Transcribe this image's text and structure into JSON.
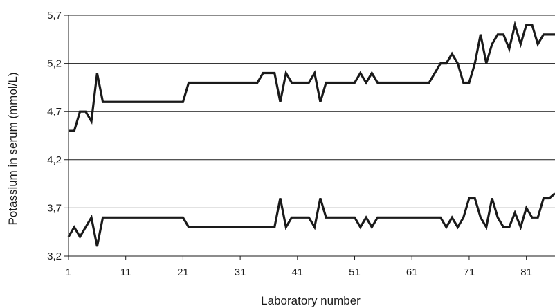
{
  "chart_data": {
    "type": "line",
    "title": "",
    "xlabel": "Laboratory number",
    "ylabel": "Potassium in serum (mmol/L)",
    "xlim": [
      1,
      86
    ],
    "ylim": [
      3.2,
      5.7
    ],
    "x_ticks": [
      "1",
      "11",
      "21",
      "31",
      "41",
      "51",
      "61",
      "71",
      "81"
    ],
    "y_ticks": [
      "3,2",
      "3,7",
      "4,2",
      "4,7",
      "5,2",
      "5,7"
    ],
    "grid": "horizontal",
    "legend": "none",
    "line_color": "#1a1a1a",
    "series": [
      {
        "x": [
          1,
          2,
          3,
          4,
          5,
          6,
          7,
          8,
          9,
          10,
          11,
          12,
          13,
          14,
          15,
          16,
          17,
          18,
          19,
          20,
          21,
          22,
          23,
          24,
          25,
          26,
          27,
          28,
          29,
          30,
          31,
          32,
          33,
          34,
          35,
          36,
          37,
          38,
          39,
          40,
          41,
          42,
          43,
          44,
          45,
          46,
          47,
          48,
          49,
          50,
          51,
          52,
          53,
          54,
          55,
          56,
          57,
          58,
          59,
          60,
          61,
          62,
          63,
          64,
          65,
          66,
          67,
          68,
          69,
          70,
          71,
          72,
          73,
          74,
          75,
          76,
          77,
          78,
          79,
          80,
          81,
          82,
          83,
          84,
          85,
          86
        ],
        "values": [
          4.5,
          4.5,
          4.7,
          4.7,
          4.6,
          5.1,
          4.8,
          4.8,
          4.8,
          4.8,
          4.8,
          4.8,
          4.8,
          4.8,
          4.8,
          4.8,
          4.8,
          4.8,
          4.8,
          4.8,
          4.8,
          5.0,
          5.0,
          5.0,
          5.0,
          5.0,
          5.0,
          5.0,
          5.0,
          5.0,
          5.0,
          5.0,
          5.0,
          5.0,
          5.1,
          5.1,
          5.1,
          4.8,
          5.1,
          5.0,
          5.0,
          5.0,
          5.0,
          5.1,
          4.8,
          5.0,
          5.0,
          5.0,
          5.0,
          5.0,
          5.0,
          5.1,
          5.0,
          5.1,
          5.0,
          5.0,
          5.0,
          5.0,
          5.0,
          5.0,
          5.0,
          5.0,
          5.0,
          5.0,
          5.1,
          5.2,
          5.2,
          5.3,
          5.2,
          5.0,
          5.0,
          5.2,
          5.5,
          5.2,
          5.4,
          5.5,
          5.5,
          5.35,
          5.6,
          5.4,
          5.6,
          5.6,
          5.4,
          5.5,
          5.5,
          5.5
        ]
      },
      {
        "x": [
          1,
          2,
          3,
          4,
          5,
          6,
          7,
          8,
          9,
          10,
          11,
          12,
          13,
          14,
          15,
          16,
          17,
          18,
          19,
          20,
          21,
          22,
          23,
          24,
          25,
          26,
          27,
          28,
          29,
          30,
          31,
          32,
          33,
          34,
          35,
          36,
          37,
          38,
          39,
          40,
          41,
          42,
          43,
          44,
          45,
          46,
          47,
          48,
          49,
          50,
          51,
          52,
          53,
          54,
          55,
          56,
          57,
          58,
          59,
          60,
          61,
          62,
          63,
          64,
          65,
          66,
          67,
          68,
          69,
          70,
          71,
          72,
          73,
          74,
          75,
          76,
          77,
          78,
          79,
          80,
          81,
          82,
          83,
          84,
          85,
          86
        ],
        "values": [
          3.4,
          3.5,
          3.4,
          3.5,
          3.6,
          3.3,
          3.6,
          3.6,
          3.6,
          3.6,
          3.6,
          3.6,
          3.6,
          3.6,
          3.6,
          3.6,
          3.6,
          3.6,
          3.6,
          3.6,
          3.6,
          3.5,
          3.5,
          3.5,
          3.5,
          3.5,
          3.5,
          3.5,
          3.5,
          3.5,
          3.5,
          3.5,
          3.5,
          3.5,
          3.5,
          3.5,
          3.5,
          3.8,
          3.5,
          3.6,
          3.6,
          3.6,
          3.6,
          3.5,
          3.8,
          3.6,
          3.6,
          3.6,
          3.6,
          3.6,
          3.6,
          3.5,
          3.6,
          3.5,
          3.6,
          3.6,
          3.6,
          3.6,
          3.6,
          3.6,
          3.6,
          3.6,
          3.6,
          3.6,
          3.6,
          3.6,
          3.5,
          3.6,
          3.5,
          3.6,
          3.8,
          3.8,
          3.6,
          3.5,
          3.8,
          3.6,
          3.5,
          3.5,
          3.65,
          3.5,
          3.7,
          3.6,
          3.6,
          3.8,
          3.8,
          3.85
        ]
      }
    ]
  }
}
